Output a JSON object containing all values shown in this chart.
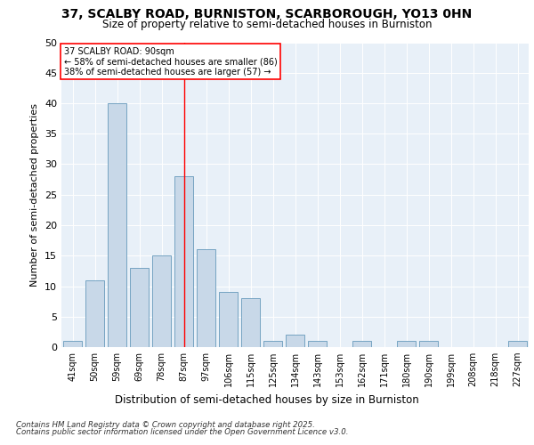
{
  "title_line1": "37, SCALBY ROAD, BURNISTON, SCARBOROUGH, YO13 0HN",
  "title_line2": "Size of property relative to semi-detached houses in Burniston",
  "xlabel": "Distribution of semi-detached houses by size in Burniston",
  "ylabel": "Number of semi-detached properties",
  "categories": [
    "41sqm",
    "50sqm",
    "59sqm",
    "69sqm",
    "78sqm",
    "87sqm",
    "97sqm",
    "106sqm",
    "115sqm",
    "125sqm",
    "134sqm",
    "143sqm",
    "153sqm",
    "162sqm",
    "171sqm",
    "180sqm",
    "190sqm",
    "199sqm",
    "208sqm",
    "218sqm",
    "227sqm"
  ],
  "values": [
    1,
    11,
    40,
    13,
    15,
    28,
    16,
    9,
    8,
    1,
    2,
    1,
    0,
    1,
    0,
    1,
    1,
    0,
    0,
    0,
    1
  ],
  "bar_color": "#c8d8e8",
  "bar_edge_color": "#6699bb",
  "red_line_x": 5,
  "annotation_title": "37 SCALBY ROAD: 90sqm",
  "annotation_line1": "← 58% of semi-detached houses are smaller (86)",
  "annotation_line2": "38% of semi-detached houses are larger (57) →",
  "ylim": [
    0,
    50
  ],
  "yticks": [
    0,
    5,
    10,
    15,
    20,
    25,
    30,
    35,
    40,
    45,
    50
  ],
  "footnote_line1": "Contains HM Land Registry data © Crown copyright and database right 2025.",
  "footnote_line2": "Contains public sector information licensed under the Open Government Licence v3.0.",
  "fig_bg_color": "#ffffff",
  "plot_bg_color": "#e8f0f8"
}
